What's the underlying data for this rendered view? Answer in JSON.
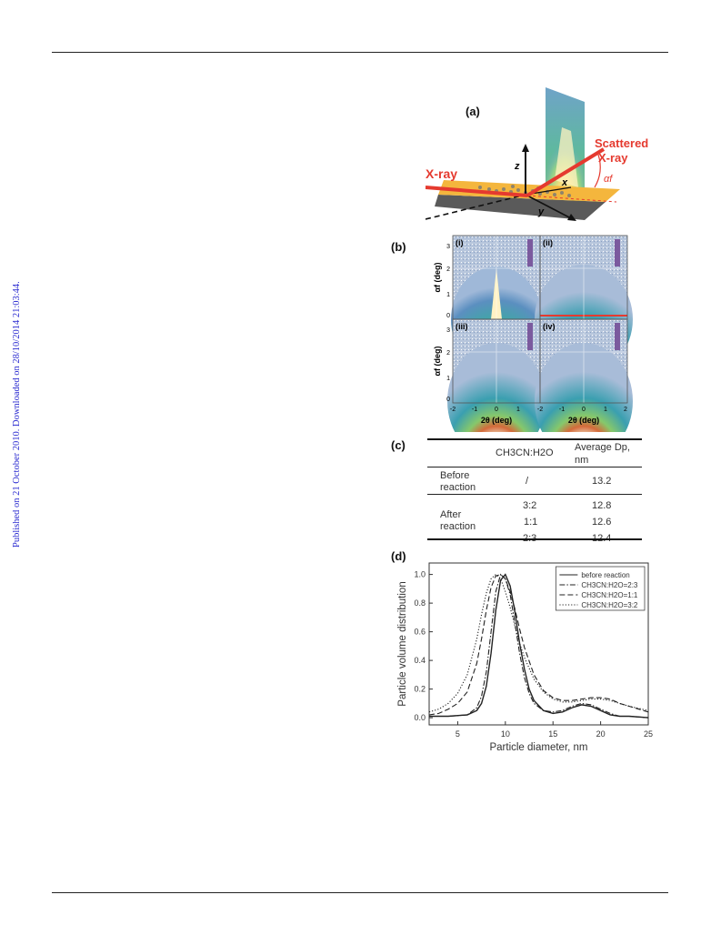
{
  "sidebar": {
    "published_text": "Published on 21 October 2010. Downloaded on 28/10/2014 21:03:44."
  },
  "panel_a": {
    "label": "(a)",
    "xray_label": "X-ray",
    "scattered_label_1": "Scattered",
    "scattered_label_2": "X-ray",
    "axis_z": "z",
    "axis_x": "x",
    "axis_y": "y",
    "alpha_label": "αf",
    "colors": {
      "beam": "#e53a2f",
      "substrate": "#f4b63d"
    }
  },
  "panel_b": {
    "label": "(b)",
    "subpanels": [
      "(i)",
      "(ii)",
      "(iii)",
      "(iv)"
    ],
    "ylabel": "αf (deg)",
    "xlabel": "2θ (deg)",
    "yticks": [
      "0",
      "1",
      "2",
      "3"
    ],
    "xticks": [
      "-2",
      "-1",
      "0",
      "1",
      "2"
    ]
  },
  "panel_c": {
    "label": "(c)",
    "header": {
      "col1": "CH3CN:H2O",
      "col2_line1": "Average Dp,",
      "col2_line2": "nm"
    },
    "before": {
      "label_line1": "Before",
      "label_line2": "reaction",
      "ratio": "/",
      "value": "13.2"
    },
    "after": {
      "label_line1": "After",
      "label_line2": "reaction",
      "rows": [
        {
          "ratio": "3:2",
          "value": "12.8"
        },
        {
          "ratio": "1:1",
          "value": "12.6"
        },
        {
          "ratio": "2:3",
          "value": "12.4"
        }
      ]
    }
  },
  "panel_d": {
    "label": "(d)"
  },
  "chart_data": {
    "type": "line",
    "xlabel": "Particle diameter, nm",
    "ylabel": "Particle volume distribution",
    "xlim": [
      2,
      25
    ],
    "ylim": [
      -0.05,
      1.08
    ],
    "xticks": [
      5,
      10,
      15,
      20,
      25
    ],
    "yticks": [
      0.0,
      0.2,
      0.4,
      0.6,
      0.8,
      1.0
    ],
    "legend_position": "top-right",
    "grid": false,
    "series": [
      {
        "name": "before reaction",
        "dash": "solid",
        "x": [
          2,
          4,
          6,
          7,
          7.5,
          8,
          8.5,
          9,
          9.5,
          10,
          10.5,
          11,
          11.5,
          12,
          12.5,
          13,
          14,
          15,
          16,
          17,
          18,
          19,
          20,
          21,
          22,
          23,
          25
        ],
        "y": [
          0.01,
          0.01,
          0.02,
          0.05,
          0.1,
          0.22,
          0.45,
          0.75,
          0.96,
          1.0,
          0.92,
          0.74,
          0.52,
          0.34,
          0.2,
          0.12,
          0.05,
          0.03,
          0.04,
          0.07,
          0.09,
          0.08,
          0.05,
          0.02,
          0.01,
          0.01,
          0.0
        ]
      },
      {
        "name": "CH3CN:H2O=2:3",
        "dash": "dash-dot",
        "x": [
          2,
          4,
          6,
          7,
          7.5,
          8,
          8.5,
          9,
          9.5,
          10,
          10.5,
          11,
          11.5,
          12,
          12.5,
          13,
          14,
          15,
          16,
          17,
          18,
          19,
          20,
          21,
          22,
          23,
          25
        ],
        "y": [
          0.01,
          0.01,
          0.02,
          0.07,
          0.15,
          0.32,
          0.6,
          0.88,
          1.0,
          0.97,
          0.86,
          0.66,
          0.45,
          0.28,
          0.17,
          0.1,
          0.05,
          0.04,
          0.05,
          0.08,
          0.1,
          0.09,
          0.06,
          0.03,
          0.01,
          0.01,
          0.0
        ]
      },
      {
        "name": "CH3CN:H2O=1:1",
        "dash": "dash",
        "x": [
          2,
          3,
          4,
          5,
          6,
          7,
          7.5,
          8,
          8.5,
          9,
          9.5,
          10,
          10.5,
          11,
          11.5,
          12,
          13,
          14,
          15,
          16,
          17,
          18,
          19,
          20,
          21,
          22,
          23,
          25
        ],
        "y": [
          0.02,
          0.03,
          0.06,
          0.1,
          0.18,
          0.38,
          0.55,
          0.75,
          0.91,
          0.99,
          1.0,
          0.97,
          0.88,
          0.76,
          0.62,
          0.49,
          0.3,
          0.19,
          0.14,
          0.12,
          0.12,
          0.13,
          0.14,
          0.14,
          0.13,
          0.1,
          0.08,
          0.04
        ]
      },
      {
        "name": "CH3CN:H2O=3:2",
        "dash": "dot",
        "x": [
          2,
          3,
          4,
          5,
          6,
          7,
          7.5,
          8,
          8.5,
          9,
          9.5,
          10,
          10.5,
          11,
          11.5,
          12,
          13,
          14,
          15,
          16,
          17,
          18,
          19,
          20,
          21,
          22,
          23,
          25
        ],
        "y": [
          0.04,
          0.06,
          0.1,
          0.17,
          0.3,
          0.55,
          0.72,
          0.87,
          0.97,
          1.0,
          0.97,
          0.88,
          0.77,
          0.64,
          0.52,
          0.42,
          0.27,
          0.18,
          0.13,
          0.11,
          0.11,
          0.12,
          0.13,
          0.13,
          0.12,
          0.1,
          0.08,
          0.05
        ]
      }
    ]
  }
}
